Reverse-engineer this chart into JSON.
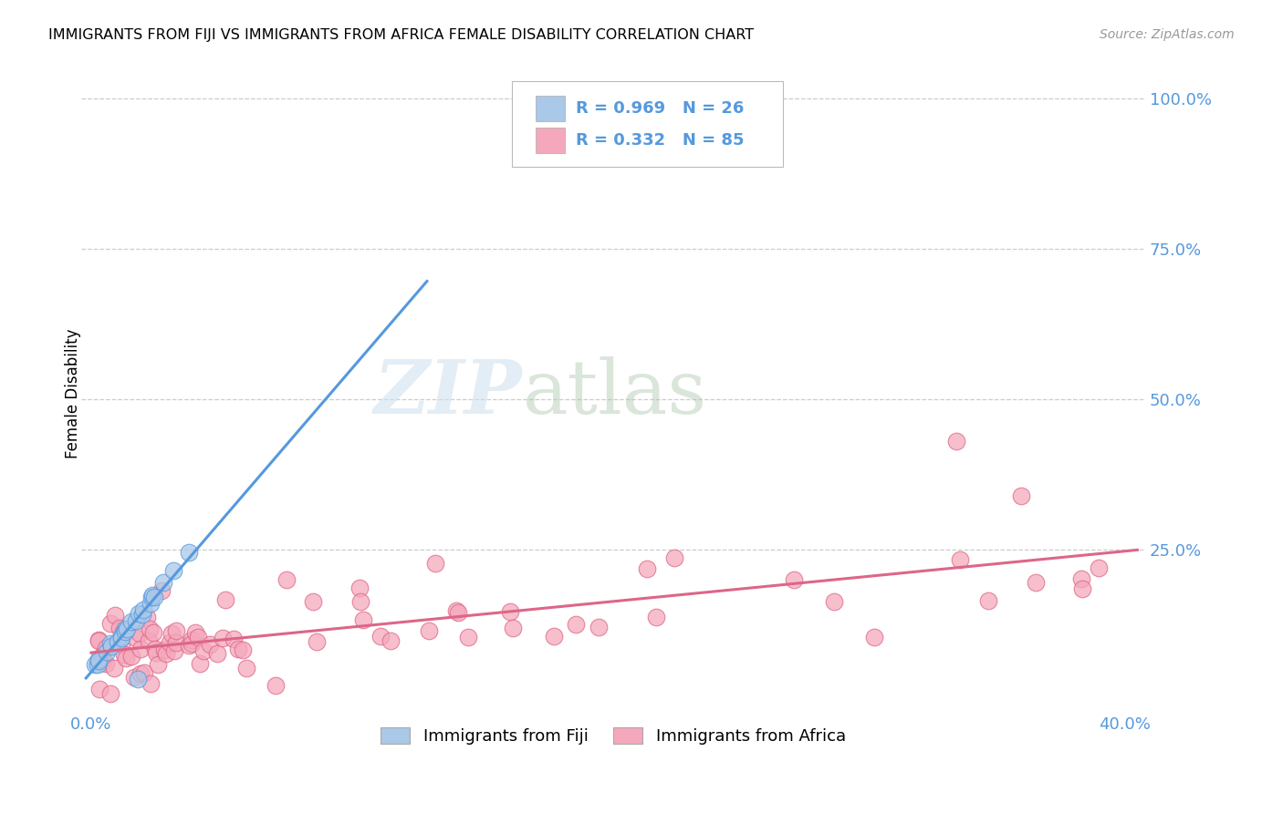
{
  "title": "IMMIGRANTS FROM FIJI VS IMMIGRANTS FROM AFRICA FEMALE DISABILITY CORRELATION CHART",
  "source": "Source: ZipAtlas.com",
  "ylabel_label": "Female Disability",
  "xlim": [
    -0.004,
    0.408
  ],
  "ylim": [
    -0.02,
    1.04
  ],
  "xticks": [
    0.0,
    0.05,
    0.1,
    0.15,
    0.2,
    0.25,
    0.3,
    0.35,
    0.4
  ],
  "xticklabels": [
    "0.0%",
    "",
    "",
    "",
    "",
    "",
    "",
    "",
    "40.0%"
  ],
  "yticks": [
    0.0,
    0.25,
    0.5,
    0.75,
    1.0
  ],
  "yticklabels": [
    "",
    "25.0%",
    "50.0%",
    "75.0%",
    "100.0%"
  ],
  "fiji_color": "#aac8e8",
  "africa_color": "#f5a8bc",
  "fiji_line_color": "#5599dd",
  "africa_line_color": "#dd6688",
  "fiji_edge_color": "#5599dd",
  "africa_edge_color": "#dd6688",
  "tick_color": "#5599dd",
  "fiji_R": 0.969,
  "fiji_N": 26,
  "africa_R": 0.332,
  "africa_N": 85,
  "legend_fiji": "Immigrants from Fiji",
  "legend_africa": "Immigrants from Africa",
  "watermark_zip": "ZIP",
  "watermark_atlas": "atlas",
  "grid_color": "#cccccc",
  "background": "white"
}
